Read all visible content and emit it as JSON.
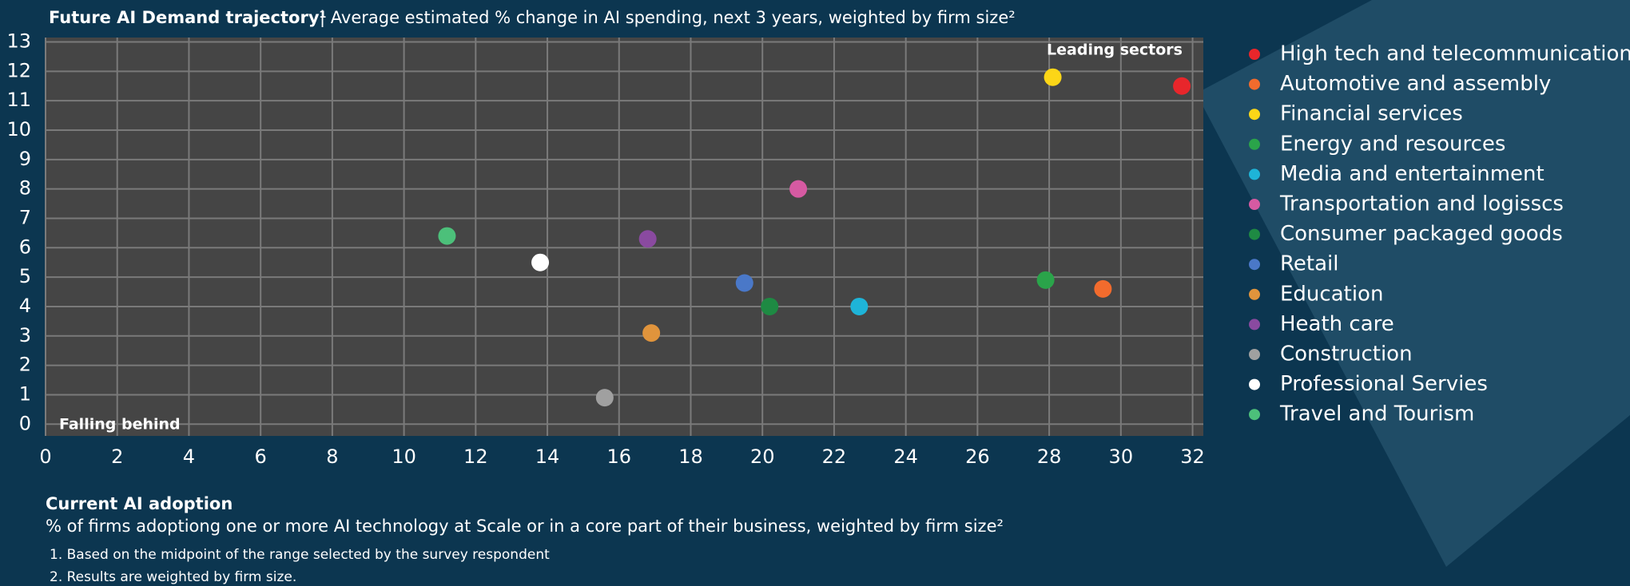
{
  "chart_data": {
    "type": "scatter",
    "title": "Future AI Demand trajectory¹",
    "subtitle": "| Average estimated % change in AI spending, next 3 years, weighted by firm size²",
    "x_label": "Current AI adoption",
    "x_label_sub": "% of firms adoptiong one or more AI technology at Scale or in a core part of their business, weighted by firm size²",
    "annotations": [
      "Leading sectors",
      "Falling behind"
    ],
    "footnotes": [
      "1. Based on the midpoint of the range selected by the survey respondent",
      "2. Results are weighted by firm size."
    ],
    "xlim": [
      0,
      32.3
    ],
    "ylim": [
      -0.4,
      13.15
    ],
    "xticks": [
      0,
      2,
      4,
      6,
      8,
      10,
      12,
      14,
      16,
      18,
      20,
      22,
      24,
      26,
      28,
      30,
      32
    ],
    "yticks": [
      0,
      1,
      2,
      3,
      4,
      5,
      6,
      7,
      8,
      9,
      10,
      11,
      12,
      13
    ],
    "grid": true,
    "legend": "right",
    "series": [
      {
        "name": "High tech and telecommunications",
        "color": "#e8262b",
        "x": [
          31.7
        ],
        "values": [
          11.5
        ]
      },
      {
        "name": "Automotive and assembly",
        "color": "#f26b2d",
        "x": [
          29.5
        ],
        "values": [
          4.6
        ]
      },
      {
        "name": "Financial services",
        "color": "#fcd617",
        "x": [
          28.1
        ],
        "values": [
          11.8
        ]
      },
      {
        "name": "Energy and resources",
        "color": "#2aa44a",
        "x": [
          27.9
        ],
        "values": [
          4.9
        ]
      },
      {
        "name": "Media and entertainment",
        "color": "#1eb4d8",
        "x": [
          22.7
        ],
        "values": [
          4.0
        ]
      },
      {
        "name": "Transportation and logisscs",
        "color": "#d65aa2",
        "x": [
          21.0
        ],
        "values": [
          8.0
        ]
      },
      {
        "name": "Consumer packaged goods",
        "color": "#1e8a43",
        "x": [
          20.2
        ],
        "values": [
          4.0
        ]
      },
      {
        "name": "Retail",
        "color": "#4a78c8",
        "x": [
          19.5
        ],
        "values": [
          4.8
        ]
      },
      {
        "name": "Education",
        "color": "#e0943c",
        "x": [
          16.9
        ],
        "values": [
          3.1
        ]
      },
      {
        "name": "Heath care",
        "color": "#8a4aa0",
        "x": [
          16.8
        ],
        "values": [
          6.3
        ]
      },
      {
        "name": "Construction",
        "color": "#a0a0a0",
        "x": [
          15.6
        ],
        "values": [
          0.9
        ]
      },
      {
        "name": "Professional Servies",
        "color": "#ffffff",
        "x": [
          13.8
        ],
        "values": [
          5.5
        ]
      },
      {
        "name": "Travel and Tourism",
        "color": "#4cc07a",
        "x": [
          11.2
        ],
        "values": [
          6.4
        ]
      }
    ]
  }
}
